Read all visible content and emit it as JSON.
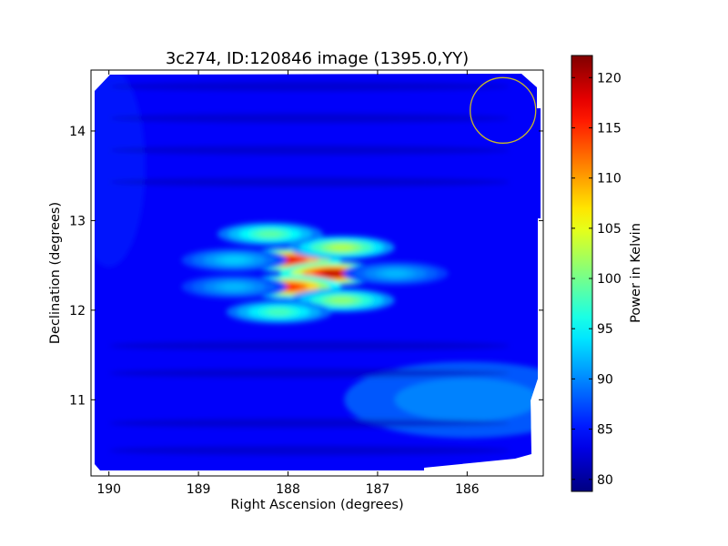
{
  "chart_data": {
    "type": "heatmap",
    "title": "3c274, ID:120846 image (1395.0,YY)",
    "xlabel": "Right Ascension (degrees)",
    "ylabel": "Declination (degrees)",
    "xlim": [
      190.2,
      185.15
    ],
    "ylim": [
      10.15,
      14.68
    ],
    "x_ticks": [
      190,
      189,
      188,
      187,
      186
    ],
    "y_ticks": [
      11,
      12,
      13,
      14
    ],
    "grid": false,
    "colormap": "jet",
    "colorbar": {
      "label": "Power in Kelvin",
      "min": 78.8,
      "max": 122.2,
      "ticks": [
        80,
        85,
        90,
        95,
        100,
        105,
        110,
        115,
        120
      ]
    },
    "background_level": 84,
    "hotspots": [
      {
        "ra": 188.0,
        "dec": 12.56,
        "value": 117.5
      },
      {
        "ra": 187.5,
        "dec": 12.41,
        "value": 119.5
      },
      {
        "ra": 188.0,
        "dec": 12.26,
        "value": 115.5
      },
      {
        "ra": 187.4,
        "dec": 12.7,
        "value": 102.5
      },
      {
        "ra": 187.4,
        "dec": 12.11,
        "value": 101
      },
      {
        "ra": 188.2,
        "dec": 12.85,
        "value": 99
      },
      {
        "ra": 188.1,
        "dec": 11.98,
        "value": 98
      },
      {
        "ra": 188.6,
        "dec": 12.56,
        "value": 93
      },
      {
        "ra": 188.6,
        "dec": 12.26,
        "value": 92
      },
      {
        "ra": 186.8,
        "dec": 12.41,
        "value": 92
      }
    ],
    "diffuse_regions": [
      {
        "ra": 186.0,
        "dec": 11.0,
        "value": 91
      },
      {
        "ra": 190.0,
        "dec": 13.6,
        "value": 86
      }
    ],
    "beam_marker": {
      "ra": 185.6,
      "dec": 14.23,
      "color": "#c8b82a"
    }
  }
}
